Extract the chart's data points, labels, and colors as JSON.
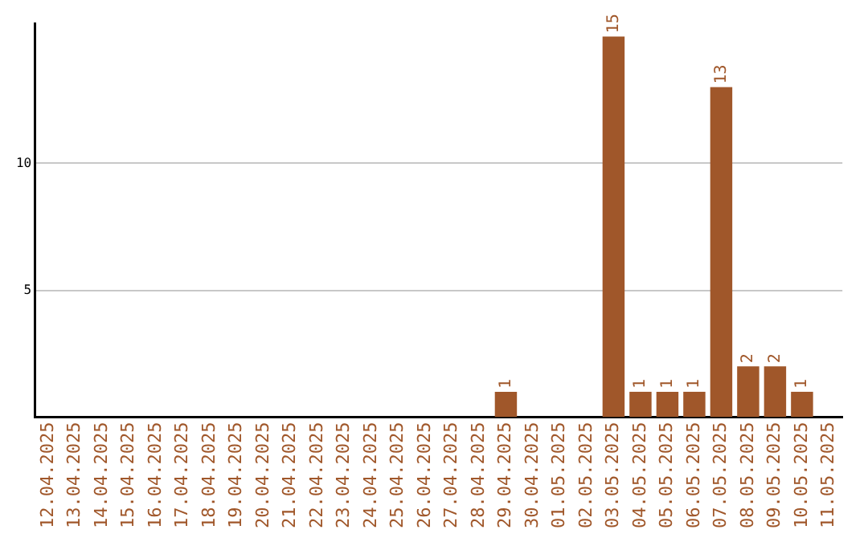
{
  "chart_data": {
    "type": "bar",
    "categories": [
      "12.04.2025",
      "13.04.2025",
      "14.04.2025",
      "15.04.2025",
      "16.04.2025",
      "17.04.2025",
      "18.04.2025",
      "19.04.2025",
      "20.04.2025",
      "21.04.2025",
      "22.04.2025",
      "23.04.2025",
      "24.04.2025",
      "25.04.2025",
      "26.04.2025",
      "27.04.2025",
      "28.04.2025",
      "29.04.2025",
      "30.04.2025",
      "01.05.2025",
      "02.05.2025",
      "03.05.2025",
      "04.05.2025",
      "05.05.2025",
      "06.05.2025",
      "07.05.2025",
      "08.05.2025",
      "09.05.2025",
      "10.05.2025",
      "11.05.2025"
    ],
    "values": [
      0,
      0,
      0,
      0,
      0,
      0,
      0,
      0,
      0,
      0,
      0,
      0,
      0,
      0,
      0,
      0,
      0,
      1,
      0,
      0,
      0,
      15,
      1,
      1,
      1,
      13,
      2,
      2,
      1,
      0
    ],
    "value_labels": [
      null,
      null,
      null,
      null,
      null,
      null,
      null,
      null,
      null,
      null,
      null,
      null,
      null,
      null,
      null,
      null,
      null,
      "1",
      null,
      null,
      null,
      "15",
      "1",
      "1",
      "1",
      "13",
      "2",
      "2",
      "1",
      null
    ],
    "color": "#a0572a",
    "ylim": [
      0,
      15.5
    ],
    "yticks": [
      5,
      10
    ],
    "grid": "y",
    "legend": false
  }
}
